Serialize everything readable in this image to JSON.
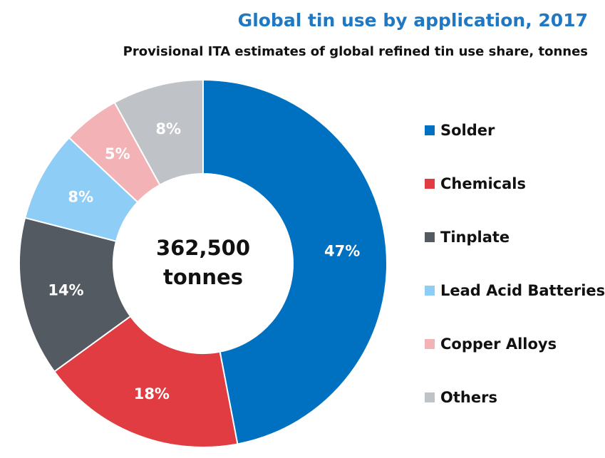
{
  "chart_data": {
    "type": "pie",
    "title": "Global tin use by application, 2017",
    "subtitle": "Provisional ITA estimates of global refined tin use share, tonnes",
    "center_label": [
      "362,500",
      "tonnes"
    ],
    "categories": [
      "Solder",
      "Chemicals",
      "Tinplate",
      "Lead Acid Batteries",
      "Copper Alloys",
      "Others"
    ],
    "values": [
      47,
      18,
      14,
      8,
      5,
      8
    ],
    "value_labels": [
      "47%",
      "18%",
      "14%",
      "8%",
      "5%",
      "8%"
    ],
    "colors": [
      "#0070c0",
      "#e03c41",
      "#545a62",
      "#8dcdf6",
      "#f3b3b6",
      "#bfc3c7"
    ],
    "legend_position": "right",
    "style": "donut"
  }
}
